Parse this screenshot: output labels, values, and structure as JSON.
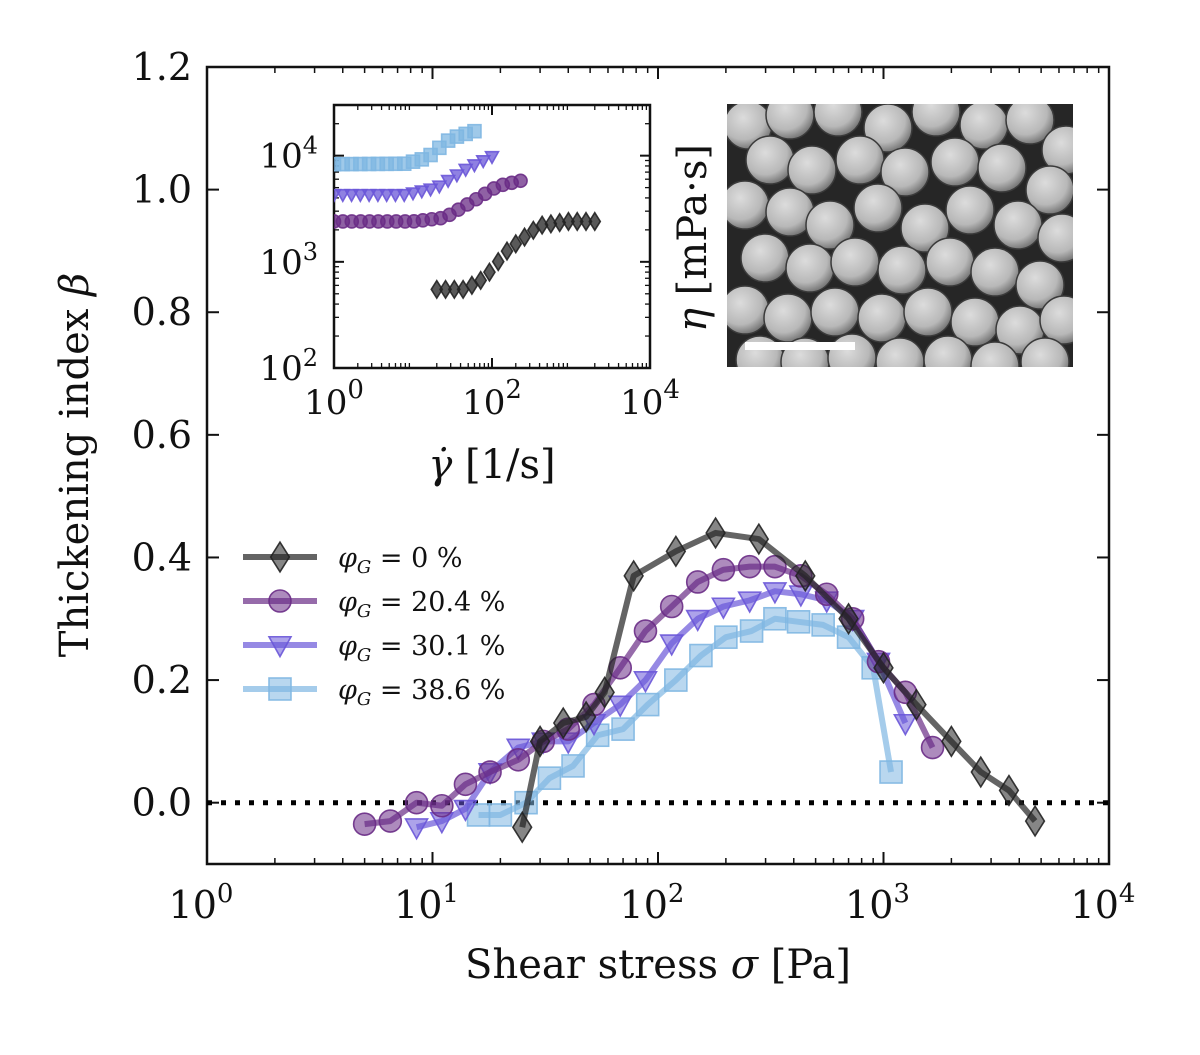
{
  "chart_data": [
    {
      "type": "line",
      "xscale": "log",
      "xlabel_text": "Shear stress",
      "xlabel_symbol": "σ",
      "xlabel_unit": "[Pa]",
      "ylabel_text": "Thickening index",
      "ylabel_symbol": "β",
      "xlim": [
        1,
        10000
      ],
      "ylim": [
        -0.1,
        1.2
      ],
      "xticks": [
        {
          "base": "10",
          "exp": "0",
          "value": 1
        },
        {
          "base": "10",
          "exp": "1",
          "value": 10
        },
        {
          "base": "10",
          "exp": "2",
          "value": 100
        },
        {
          "base": "10",
          "exp": "3",
          "value": 1000
        },
        {
          "base": "10",
          "exp": "4",
          "value": 10000
        }
      ],
      "yticks": [
        {
          "label": "0.0",
          "value": 0.0
        },
        {
          "label": "0.2",
          "value": 0.2
        },
        {
          "label": "0.4",
          "value": 0.4
        },
        {
          "label": "0.6",
          "value": 0.6
        },
        {
          "label": "0.8",
          "value": 0.8
        },
        {
          "label": "1.0",
          "value": 1.0
        },
        {
          "label": "1.2",
          "value": 1.2
        }
      ],
      "reference_line": {
        "y": 0,
        "style": "dotted"
      },
      "legend_position": "center-left",
      "series": [
        {
          "name": "φG = 0 %",
          "legend_value": "= 0 %",
          "color": "#222222",
          "marker": "diamond",
          "x": [
            25,
            30,
            38,
            48,
            58,
            78,
            120,
            180,
            280,
            450,
            700,
            1000,
            1400,
            2000,
            2700,
            3600,
            4700
          ],
          "y": [
            -0.04,
            0.1,
            0.13,
            0.14,
            0.18,
            0.37,
            0.41,
            0.44,
            0.43,
            0.37,
            0.3,
            0.22,
            0.16,
            0.1,
            0.05,
            0.02,
            -0.03
          ]
        },
        {
          "name": "φG = 20.4 %",
          "legend_value": "= 20.4 %",
          "color": "#6a2c86",
          "marker": "circle",
          "x": [
            5,
            6.5,
            8.5,
            11,
            14,
            18,
            24,
            31,
            40,
            52,
            68,
            88,
            115,
            150,
            195,
            255,
            330,
            430,
            560,
            730,
            950,
            1250,
            1650
          ],
          "y": [
            -0.035,
            -0.03,
            0.0,
            -0.005,
            0.03,
            0.05,
            0.07,
            0.1,
            0.12,
            0.16,
            0.22,
            0.28,
            0.32,
            0.36,
            0.38,
            0.385,
            0.385,
            0.37,
            0.34,
            0.3,
            0.23,
            0.18,
            0.09
          ]
        },
        {
          "name": "φG = 30.1 %",
          "legend_value": "= 30.1 %",
          "color": "#6a57d8",
          "marker": "triangle-down",
          "x": [
            8.5,
            11,
            14,
            18,
            24,
            31,
            40,
            52,
            68,
            88,
            115,
            150,
            195,
            255,
            330,
            430,
            560,
            730,
            950,
            1250
          ],
          "y": [
            -0.04,
            -0.03,
            -0.01,
            0.05,
            0.09,
            0.1,
            0.1,
            0.13,
            0.16,
            0.2,
            0.26,
            0.3,
            0.32,
            0.33,
            0.345,
            0.34,
            0.33,
            0.3,
            0.23,
            0.13
          ]
        },
        {
          "name": "φG = 38.6 %",
          "legend_value": "= 38.6 %",
          "color": "#7fb7e2",
          "marker": "square",
          "x": [
            16,
            20,
            26,
            33,
            42,
            54,
            70,
            90,
            120,
            155,
            200,
            260,
            330,
            420,
            540,
            700,
            900,
            1080
          ],
          "y": [
            -0.02,
            -0.02,
            0.0,
            0.04,
            0.06,
            0.11,
            0.12,
            0.16,
            0.2,
            0.24,
            0.27,
            0.28,
            0.3,
            0.295,
            0.29,
            0.27,
            0.22,
            0.05
          ]
        }
      ]
    },
    {
      "type": "scatter",
      "role": "inset",
      "xscale": "log",
      "yscale": "log",
      "xlabel_symbol": "γ̇",
      "xlabel_unit": "[1/s]",
      "ylabel_symbol": "η",
      "ylabel_unit": "[mPa·s]",
      "xlim": [
        1,
        10000
      ],
      "ylim": [
        100,
        30000
      ],
      "xticks": [
        {
          "base": "10",
          "exp": "0",
          "value": 1
        },
        {
          "base": "10",
          "exp": "2",
          "value": 100
        },
        {
          "base": "10",
          "exp": "4",
          "value": 10000
        }
      ],
      "yticks": [
        {
          "base": "10",
          "exp": "2",
          "value": 100
        },
        {
          "base": "10",
          "exp": "3",
          "value": 1000
        },
        {
          "base": "10",
          "exp": "4",
          "value": 10000
        }
      ],
      "series": [
        {
          "name": "φG = 0 %",
          "color": "#222222",
          "marker": "diamond",
          "x_range": [
            20,
            2000
          ],
          "curve": [
            [
              20,
              550
            ],
            [
              45,
              550
            ],
            [
              80,
              700
            ],
            [
              160,
              1300
            ],
            [
              400,
              2200
            ],
            [
              900,
              2400
            ],
            [
              2000,
              2400
            ]
          ]
        },
        {
          "name": "φG = 20.4 %",
          "color": "#6a2c86",
          "marker": "circle",
          "x_range": [
            1,
            230
          ],
          "curve": [
            [
              1,
              2400
            ],
            [
              10,
              2400
            ],
            [
              25,
              2600
            ],
            [
              60,
              3800
            ],
            [
              120,
              5200
            ],
            [
              230,
              5800
            ]
          ]
        },
        {
          "name": "φG = 30.1 %",
          "color": "#6a57d8",
          "marker": "triangle-down",
          "x_range": [
            1,
            100
          ],
          "curve": [
            [
              1,
              4300
            ],
            [
              8,
              4300
            ],
            [
              20,
              5000
            ],
            [
              50,
              7700
            ],
            [
              100,
              9800
            ]
          ]
        },
        {
          "name": "φG = 38.6 %",
          "color": "#7fb7e2",
          "marker": "square",
          "x_range": [
            1,
            60
          ],
          "curve": [
            [
              1,
              8300
            ],
            [
              8,
              8400
            ],
            [
              15,
              9500
            ],
            [
              30,
              14500
            ],
            [
              60,
              17000
            ]
          ]
        }
      ]
    }
  ],
  "image_inset": {
    "description_label": "SEM micrograph of spherical particles with scale bar",
    "scale_bar_label": ""
  }
}
